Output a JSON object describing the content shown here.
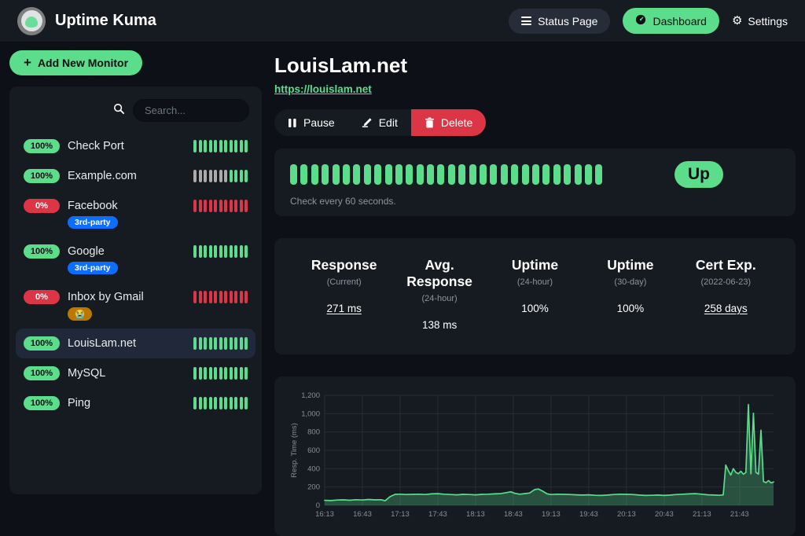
{
  "theme": {
    "green": "#5cdd8b",
    "red": "#dc3545",
    "blue": "#0d6efd",
    "orange": "#b97800",
    "empty_beat": "#aaaaaa",
    "page_bg": "#0d1117",
    "card_bg": "#161b22"
  },
  "navbar": {
    "app_title": "Uptime Kuma",
    "status_page_label": "Status Page",
    "dashboard_label": "Dashboard",
    "settings_label": "Settings"
  },
  "sidebar": {
    "add_monitor_label": "Add New Monitor",
    "add_monitor_plus": "+",
    "search_placeholder": "Search...",
    "monitors": [
      {
        "name": "Check Port",
        "uptime": "100%",
        "status": "up",
        "selected": false,
        "tags": [],
        "beats": [
          "up",
          "up",
          "up",
          "up",
          "up",
          "up",
          "up",
          "up",
          "up",
          "up",
          "up"
        ]
      },
      {
        "name": "Example.com",
        "uptime": "100%",
        "status": "up",
        "selected": false,
        "tags": [],
        "beats": [
          "empty",
          "empty",
          "empty",
          "empty",
          "empty",
          "empty",
          "empty",
          "up",
          "up",
          "up",
          "up"
        ]
      },
      {
        "name": "Facebook",
        "uptime": "0%",
        "status": "down",
        "selected": false,
        "tags": [
          {
            "label": "3rd-party",
            "color": "#0d6efd"
          }
        ],
        "beats": [
          "down",
          "down",
          "down",
          "down",
          "down",
          "down",
          "down",
          "down",
          "down",
          "down",
          "down"
        ]
      },
      {
        "name": "Google",
        "uptime": "100%",
        "status": "up",
        "selected": false,
        "tags": [
          {
            "label": "3rd-party",
            "color": "#0d6efd"
          }
        ],
        "beats": [
          "up",
          "up",
          "up",
          "up",
          "up",
          "up",
          "up",
          "up",
          "up",
          "up",
          "up"
        ]
      },
      {
        "name": "Inbox by Gmail",
        "uptime": "0%",
        "status": "down",
        "selected": false,
        "tags": [
          {
            "label": "😭",
            "color": "#b97800"
          }
        ],
        "beats": [
          "down",
          "down",
          "down",
          "down",
          "down",
          "down",
          "down",
          "down",
          "down",
          "down",
          "down"
        ]
      },
      {
        "name": "LouisLam.net",
        "uptime": "100%",
        "status": "up",
        "selected": true,
        "tags": [],
        "beats": [
          "up",
          "up",
          "up",
          "up",
          "up",
          "up",
          "up",
          "up",
          "up",
          "up",
          "up"
        ]
      },
      {
        "name": "MySQL",
        "uptime": "100%",
        "status": "up",
        "selected": false,
        "tags": [],
        "beats": [
          "up",
          "up",
          "up",
          "up",
          "up",
          "up",
          "up",
          "up",
          "up",
          "up",
          "up"
        ]
      },
      {
        "name": "Ping",
        "uptime": "100%",
        "status": "up",
        "selected": false,
        "tags": [],
        "beats": [
          "up",
          "up",
          "up",
          "up",
          "up",
          "up",
          "up",
          "up",
          "up",
          "up",
          "up"
        ]
      }
    ]
  },
  "main": {
    "title": "LouisLam.net",
    "url": "https://louislam.net",
    "actions": {
      "pause": "Pause",
      "edit": "Edit",
      "delete": "Delete"
    },
    "heartbeat": {
      "beat_count": 30,
      "status_label": "Up",
      "note": "Check every 60 seconds."
    },
    "stats": [
      {
        "title": "Response",
        "subtitle": "(Current)",
        "value": "271 ms",
        "link": true
      },
      {
        "title": "Avg. Response",
        "subtitle": "(24-hour)",
        "value": "138 ms",
        "link": false
      },
      {
        "title": "Uptime",
        "subtitle": "(24-hour)",
        "value": "100%",
        "link": false
      },
      {
        "title": "Uptime",
        "subtitle": "(30-day)",
        "value": "100%",
        "link": false
      },
      {
        "title": "Cert Exp.",
        "subtitle": "(2022-06-23)",
        "value": "258 days",
        "link": true
      }
    ]
  },
  "chart_data": {
    "type": "area",
    "title": "",
    "xlabel": "",
    "ylabel": "Resp. Time (ms)",
    "ylim": [
      0,
      1200
    ],
    "y_ticks": [
      0,
      200,
      400,
      600,
      800,
      1000,
      1200
    ],
    "y_tick_labels": [
      "0",
      "200",
      "400",
      "600",
      "800",
      "1,000",
      "1,200"
    ],
    "x_ticks": [
      "16:13",
      "16:43",
      "17:13",
      "17:43",
      "18:13",
      "18:43",
      "19:13",
      "19:43",
      "20:13",
      "20:43",
      "21:13",
      "21:43"
    ],
    "x_domain": [
      "16:13",
      "22:10"
    ],
    "grid": true,
    "legend_position": "none",
    "line_color": "#5cdd8b",
    "fill_opacity": 0.28,
    "series": [
      {
        "name": "Resp. Time (ms)",
        "points": [
          [
            "16:13",
            55
          ],
          [
            "16:18",
            52
          ],
          [
            "16:23",
            58
          ],
          [
            "16:28",
            60
          ],
          [
            "16:33",
            56
          ],
          [
            "16:38",
            62
          ],
          [
            "16:43",
            58
          ],
          [
            "16:48",
            64
          ],
          [
            "16:53",
            60
          ],
          [
            "16:58",
            62
          ],
          [
            "17:01",
            50
          ],
          [
            "17:05",
            95
          ],
          [
            "17:09",
            120
          ],
          [
            "17:13",
            122
          ],
          [
            "17:18",
            118
          ],
          [
            "17:23",
            120
          ],
          [
            "17:28",
            122
          ],
          [
            "17:33",
            118
          ],
          [
            "17:38",
            125
          ],
          [
            "17:43",
            128
          ],
          [
            "17:48",
            122
          ],
          [
            "17:53",
            118
          ],
          [
            "17:58",
            115
          ],
          [
            "18:03",
            120
          ],
          [
            "18:08",
            118
          ],
          [
            "18:13",
            115
          ],
          [
            "18:18",
            120
          ],
          [
            "18:23",
            122
          ],
          [
            "18:28",
            125
          ],
          [
            "18:33",
            128
          ],
          [
            "18:38",
            140
          ],
          [
            "18:41",
            148
          ],
          [
            "18:44",
            132
          ],
          [
            "18:48",
            122
          ],
          [
            "18:52",
            128
          ],
          [
            "18:56",
            135
          ],
          [
            "19:00",
            172
          ],
          [
            "19:03",
            178
          ],
          [
            "19:06",
            158
          ],
          [
            "19:10",
            125
          ],
          [
            "19:13",
            118
          ],
          [
            "19:18",
            122
          ],
          [
            "19:23",
            120
          ],
          [
            "19:28",
            118
          ],
          [
            "19:33",
            115
          ],
          [
            "19:38",
            112
          ],
          [
            "19:43",
            115
          ],
          [
            "19:48",
            110
          ],
          [
            "19:53",
            108
          ],
          [
            "19:58",
            112
          ],
          [
            "20:03",
            118
          ],
          [
            "20:08",
            122
          ],
          [
            "20:13",
            120
          ],
          [
            "20:18",
            118
          ],
          [
            "20:23",
            112
          ],
          [
            "20:28",
            108
          ],
          [
            "20:33",
            110
          ],
          [
            "20:38",
            112
          ],
          [
            "20:43",
            108
          ],
          [
            "20:48",
            112
          ],
          [
            "20:53",
            118
          ],
          [
            "20:58",
            122
          ],
          [
            "21:03",
            125
          ],
          [
            "21:08",
            128
          ],
          [
            "21:13",
            122
          ],
          [
            "21:18",
            115
          ],
          [
            "21:23",
            112
          ],
          [
            "21:27",
            110
          ],
          [
            "21:30",
            115
          ],
          [
            "21:32",
            440
          ],
          [
            "21:34",
            380
          ],
          [
            "21:36",
            330
          ],
          [
            "21:38",
            400
          ],
          [
            "21:40",
            360
          ],
          [
            "21:42",
            345
          ],
          [
            "21:44",
            372
          ],
          [
            "21:46",
            340
          ],
          [
            "21:48",
            358
          ],
          [
            "21:50",
            1100
          ],
          [
            "21:52",
            345
          ],
          [
            "21:54",
            1005
          ],
          [
            "21:56",
            360
          ],
          [
            "21:58",
            340
          ],
          [
            "22:00",
            820
          ],
          [
            "22:02",
            260
          ],
          [
            "22:04",
            248
          ],
          [
            "22:06",
            270
          ],
          [
            "22:08",
            245
          ],
          [
            "22:10",
            255
          ]
        ]
      }
    ]
  }
}
